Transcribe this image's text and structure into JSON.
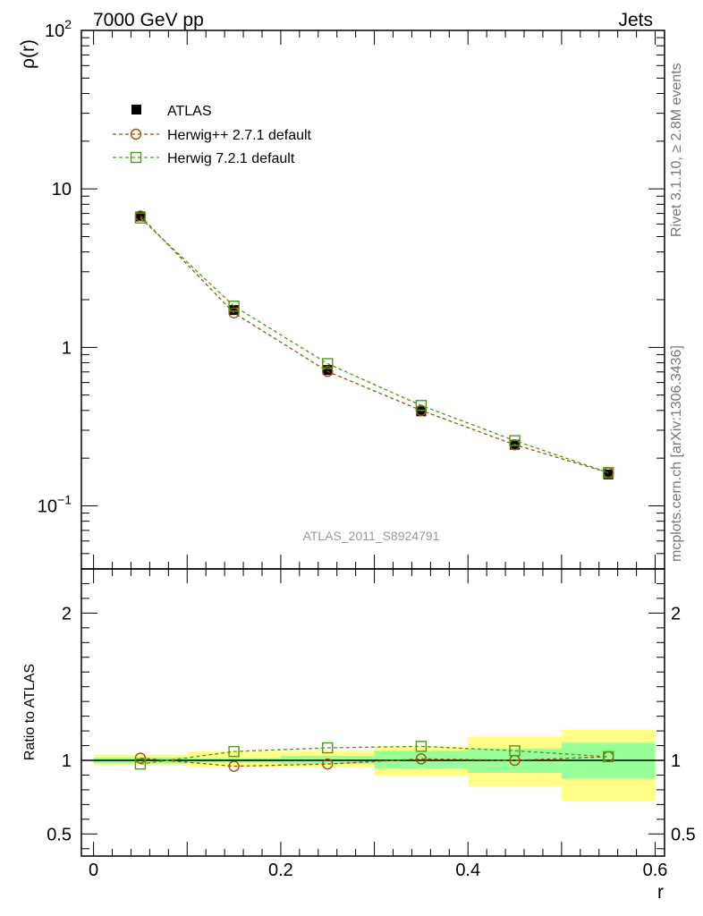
{
  "header": {
    "left": "7000 GeV pp",
    "right": "Jets"
  },
  "side_labels": {
    "rivet": "Rivet 3.1.10, ≥ 2.8M events",
    "mcplots": "mcplots.cern.ch [arXiv:1306.3436]"
  },
  "watermark": "ATLAS_2011_S8924791",
  "chart_data": [
    {
      "type": "scatter",
      "panel": "main",
      "ylabel": "ρ(r)",
      "xlabel": "",
      "xlim": [
        -0.013,
        0.61
      ],
      "ylim": [
        0.04,
        100
      ],
      "yscale": "log",
      "ytick_labels": [
        "10−1",
        "1",
        "10",
        "102"
      ],
      "legend_placement": "top-left",
      "x": [
        0.05,
        0.15,
        0.25,
        0.35,
        0.45,
        0.55
      ],
      "series": [
        {
          "name": "ATLAS",
          "marker": "filled-square",
          "color": "#000000",
          "values": [
            6.7,
            1.72,
            0.72,
            0.395,
            0.243,
            0.158
          ]
        },
        {
          "name": "Herwig++ 2.7.1 default",
          "marker": "open-circle",
          "line": "dashed",
          "color": "#a0520a",
          "values": [
            6.75,
            1.65,
            0.705,
            0.4,
            0.243,
            0.162
          ]
        },
        {
          "name": "Herwig 7.2.1 default",
          "marker": "open-square",
          "line": "dashed",
          "color": "#4c9a18",
          "values": [
            6.55,
            1.82,
            0.79,
            0.43,
            0.258,
            0.162
          ]
        }
      ]
    },
    {
      "type": "scatter",
      "panel": "ratio",
      "ylabel": "Ratio to ATLAS",
      "xlabel": "r",
      "xlim": [
        -0.013,
        0.61
      ],
      "ylim": [
        0.35,
        2.3
      ],
      "ytick_labels": [
        "0.5",
        "1",
        "2"
      ],
      "xtick_labels": [
        "0",
        "0.2",
        "0.4",
        "0.6"
      ],
      "bands": {
        "edges": [
          0.0,
          0.1,
          0.2,
          0.3,
          0.4,
          0.5,
          0.6
        ],
        "stat_low": [
          0.98,
          0.985,
          0.975,
          0.945,
          0.915,
          0.875
        ],
        "stat_high": [
          1.02,
          1.015,
          1.03,
          1.065,
          1.08,
          1.12
        ],
        "total_low": [
          0.965,
          0.955,
          0.95,
          0.895,
          0.825,
          0.725
        ],
        "total_high": [
          1.04,
          1.06,
          1.065,
          1.095,
          1.16,
          1.21
        ],
        "stat_color": "#99ff99",
        "total_color": "#ffff88"
      },
      "x": [
        0.05,
        0.15,
        0.25,
        0.35,
        0.45,
        0.55
      ],
      "series": [
        {
          "name": "Herwig++ 2.7.1 default",
          "marker": "open-circle",
          "line": "dashed",
          "color": "#a0520a",
          "values": [
            1.015,
            0.96,
            0.975,
            1.01,
            1.0,
            1.025
          ]
        },
        {
          "name": "Herwig 7.2.1 default",
          "marker": "open-square",
          "line": "dashed",
          "color": "#4c9a18",
          "values": [
            0.975,
            1.06,
            1.085,
            1.095,
            1.065,
            1.025
          ]
        }
      ]
    }
  ]
}
